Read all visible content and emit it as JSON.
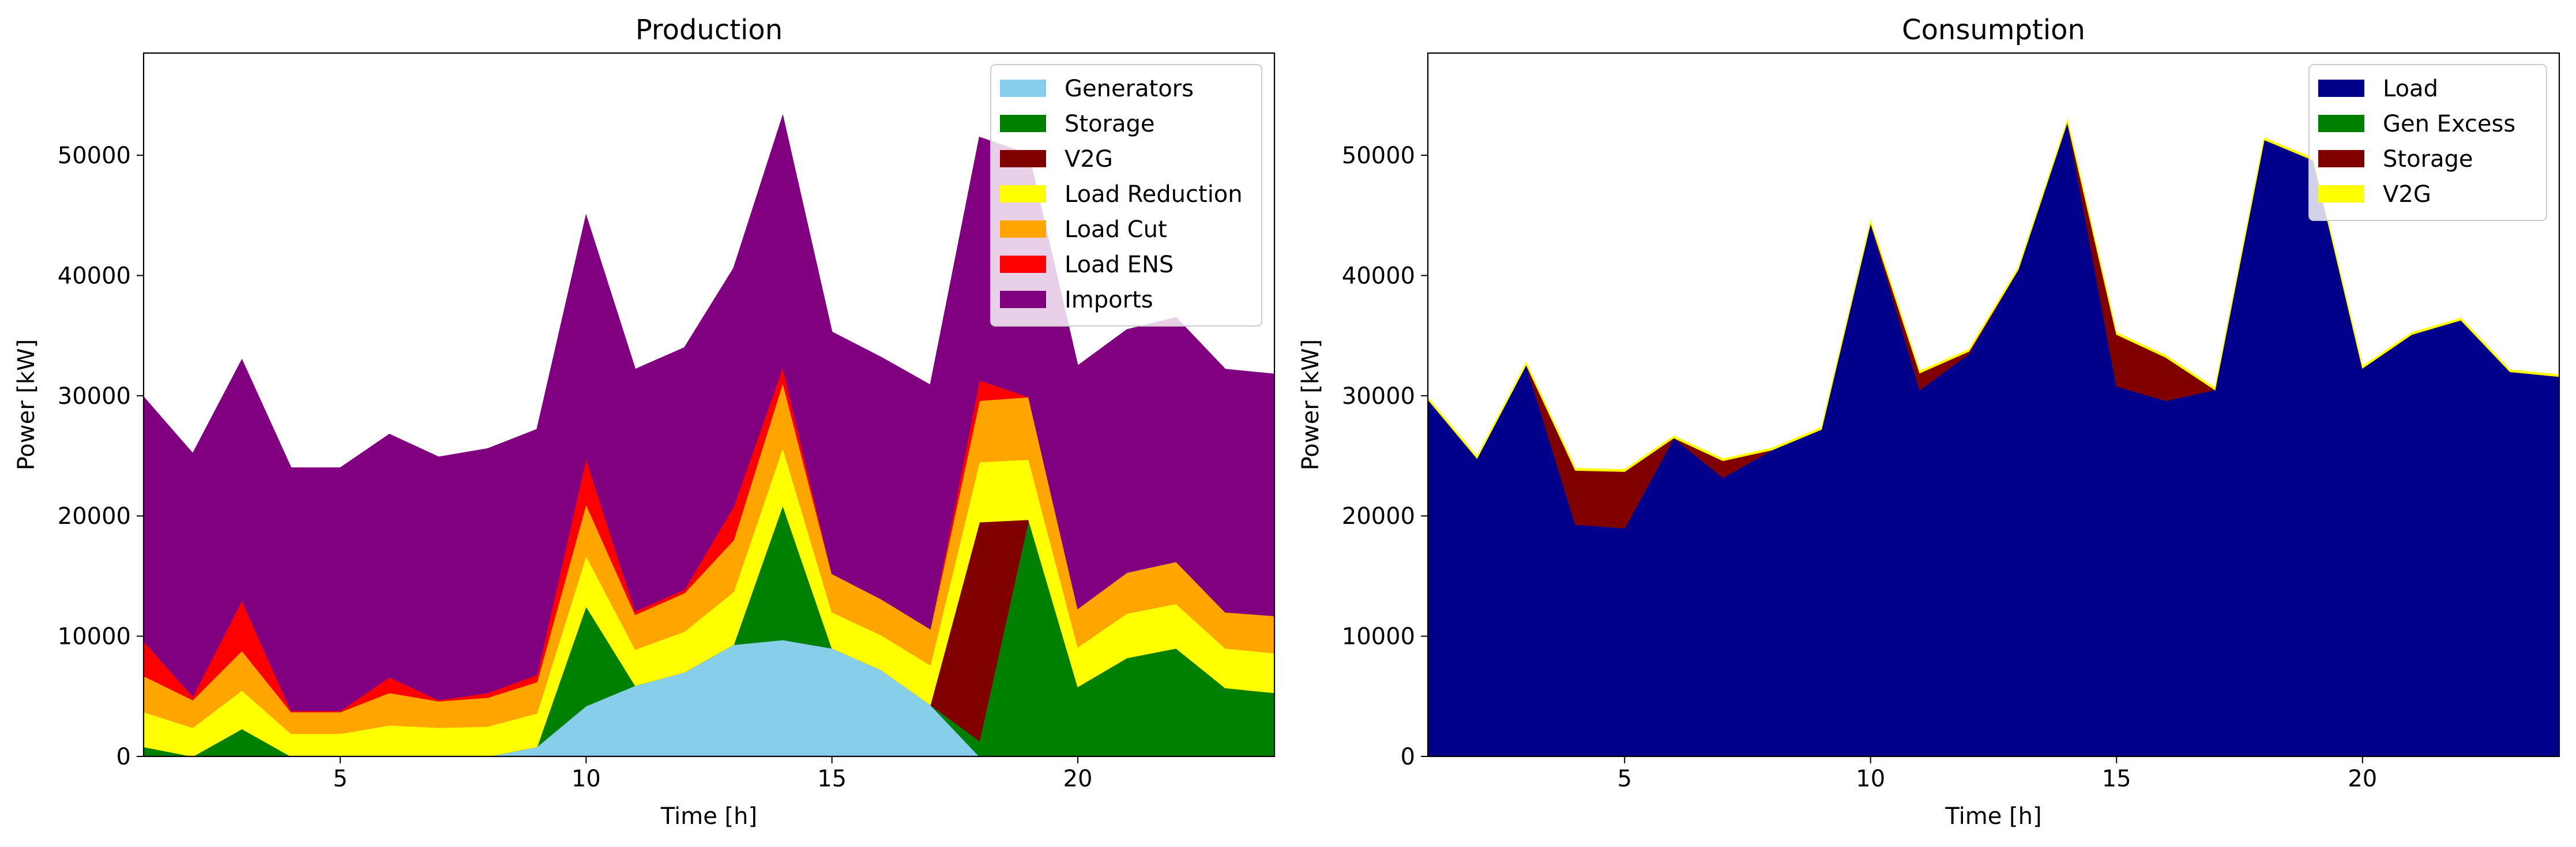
{
  "chart_data": [
    {
      "type": "area",
      "stacked": true,
      "title": "Production",
      "xlabel": "Time [h]",
      "ylabel": "Power [kW]",
      "xlim": [
        1,
        24
      ],
      "ylim": [
        0,
        58500
      ],
      "x": [
        1,
        2,
        3,
        4,
        5,
        6,
        7,
        8,
        9,
        10,
        11,
        12,
        13,
        14,
        15,
        16,
        17,
        18,
        19,
        20,
        21,
        22,
        23,
        24
      ],
      "xticks": [
        5,
        10,
        15,
        20
      ],
      "yticks": [
        0,
        10000,
        20000,
        30000,
        40000,
        50000
      ],
      "legend_location": "top-right",
      "series": [
        {
          "name": "Generators",
          "color": "#87ceeb",
          "values": [
            0,
            0,
            0,
            0,
            0,
            0,
            0,
            0,
            800,
            4200,
            5900,
            7000,
            9300,
            9700,
            9000,
            7200,
            4300,
            0,
            0,
            0,
            0,
            0,
            0,
            0
          ]
        },
        {
          "name": "Storage",
          "color": "#008000",
          "values": [
            800,
            0,
            2300,
            0,
            0,
            0,
            0,
            0,
            0,
            8300,
            0,
            0,
            0,
            11200,
            0,
            0,
            0,
            1300,
            19700,
            5800,
            8200,
            9000,
            5700,
            5300
          ]
        },
        {
          "name": "V2G",
          "color": "#800000",
          "values": [
            0,
            0,
            0,
            0,
            0,
            0,
            0,
            0,
            0,
            0,
            0,
            0,
            0,
            0,
            0,
            0,
            0,
            18200,
            0,
            0,
            0,
            0,
            0,
            0
          ]
        },
        {
          "name": "Load Reduction",
          "color": "#ffff00",
          "values": [
            2900,
            2400,
            3200,
            1900,
            1900,
            2600,
            2400,
            2500,
            2800,
            4200,
            3000,
            3400,
            4400,
            4800,
            3000,
            2900,
            3300,
            5000,
            5000,
            3300,
            3700,
            3700,
            3300,
            3300
          ]
        },
        {
          "name": "Load Cut",
          "color": "#ffa500",
          "values": [
            3000,
            2300,
            3300,
            1800,
            1800,
            2700,
            2200,
            2400,
            2600,
            4300,
            2900,
            3200,
            4300,
            5400,
            3200,
            3000,
            3000,
            5100,
            5200,
            3200,
            3400,
            3500,
            3000,
            3100
          ]
        },
        {
          "name": "Load ENS",
          "color": "#ff0000",
          "values": [
            2900,
            300,
            4200,
            100,
            100,
            1300,
            100,
            400,
            600,
            3800,
            300,
            300,
            2800,
            1300,
            0,
            0,
            0,
            1700,
            0,
            0,
            0,
            0,
            0,
            0
          ]
        },
        {
          "name": "Imports",
          "color": "#800080",
          "values": [
            20300,
            20200,
            20000,
            20200,
            20200,
            20200,
            20200,
            20300,
            20400,
            20200,
            20100,
            20100,
            19800,
            20900,
            20100,
            20100,
            20300,
            20200,
            20200,
            20200,
            20200,
            20300,
            20200,
            20100
          ]
        }
      ]
    },
    {
      "type": "area",
      "stacked": true,
      "title": "Consumption",
      "xlabel": "Time [h]",
      "ylabel": "Power [kW]",
      "xlim": [
        1,
        24
      ],
      "ylim": [
        0,
        58500
      ],
      "x": [
        1,
        2,
        3,
        4,
        5,
        6,
        7,
        8,
        9,
        10,
        11,
        12,
        13,
        14,
        15,
        16,
        17,
        18,
        19,
        20,
        21,
        22,
        23,
        24
      ],
      "xticks": [
        5,
        10,
        15,
        20
      ],
      "yticks": [
        0,
        10000,
        20000,
        30000,
        40000,
        50000
      ],
      "legend_location": "top-right",
      "series": [
        {
          "name": "Load",
          "color": "#00008b",
          "values": [
            29700,
            24800,
            32600,
            19300,
            19000,
            26500,
            23200,
            25500,
            27200,
            44400,
            30500,
            33500,
            40500,
            52800,
            30800,
            29600,
            30500,
            51300,
            49600,
            32300,
            35100,
            36300,
            32000,
            31600
          ]
        },
        {
          "name": "Gen Excess",
          "color": "#008000",
          "values": [
            0,
            0,
            0,
            0,
            0,
            0,
            0,
            0,
            0,
            0,
            0,
            0,
            0,
            0,
            0,
            0,
            0,
            0,
            0,
            0,
            0,
            0,
            0,
            0
          ]
        },
        {
          "name": "Storage",
          "color": "#800000",
          "values": [
            0,
            0,
            0,
            4500,
            4700,
            0,
            1400,
            0,
            0,
            0,
            1400,
            200,
            0,
            0,
            4300,
            3600,
            0,
            0,
            0,
            0,
            0,
            0,
            0,
            0
          ]
        },
        {
          "name": "V2G",
          "color": "#ffff00",
          "values": [
            150,
            150,
            150,
            150,
            150,
            150,
            150,
            150,
            150,
            150,
            150,
            150,
            150,
            150,
            150,
            150,
            150,
            150,
            150,
            150,
            150,
            150,
            150,
            150
          ]
        }
      ]
    }
  ]
}
